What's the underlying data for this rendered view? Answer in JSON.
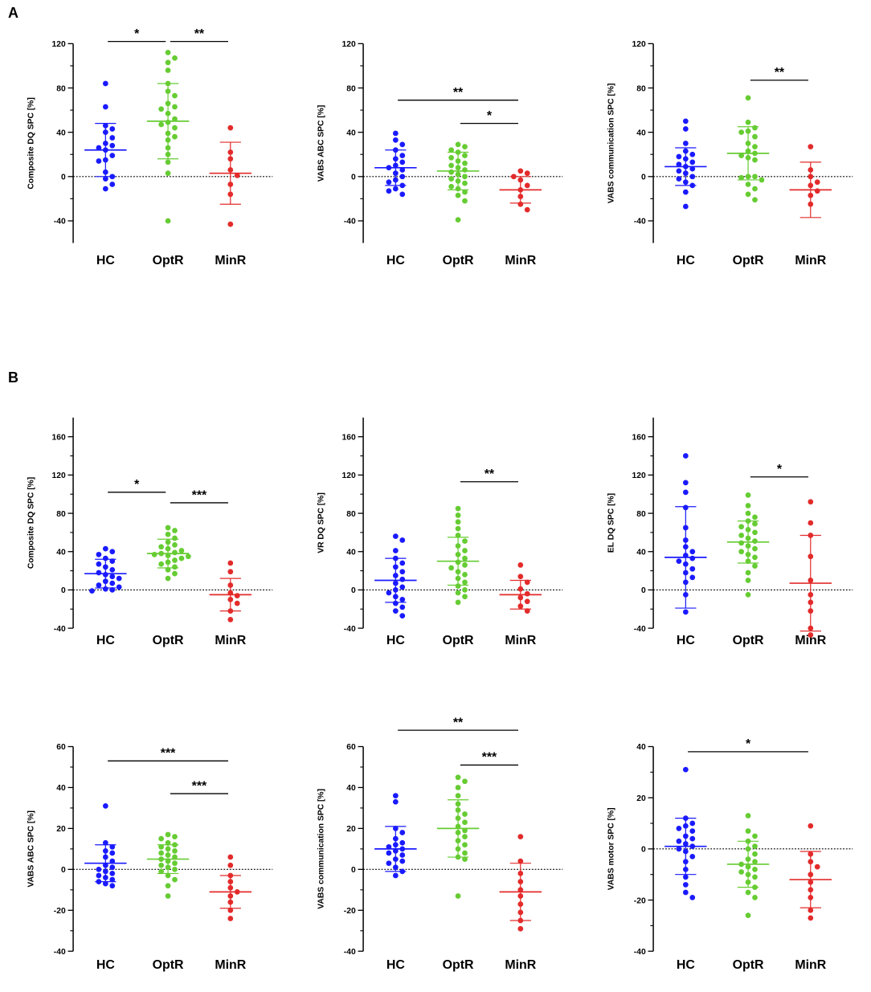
{
  "panels": [
    {
      "letter": "A"
    },
    {
      "letter": "B"
    }
  ],
  "colors": {
    "HC": "#1a1aff",
    "OptR": "#66cc33",
    "MinR": "#e32b2b"
  },
  "chart_data": [
    {
      "type": "scatter",
      "panel": "A",
      "ylabel": "Composite DQ SPC [%]",
      "ylim": [
        -60,
        120
      ],
      "yticks": [
        -40,
        0,
        40,
        80,
        120
      ],
      "categories": [
        "HC",
        "OptR",
        "MinR"
      ],
      "series": [
        {
          "name": "HC",
          "mean": 24,
          "sd": 24,
          "points": [
            84,
            63,
            46,
            43,
            40,
            35,
            30,
            28,
            26,
            24,
            19,
            15,
            14,
            4,
            0,
            -2,
            -7,
            -11
          ]
        },
        {
          "name": "OptR",
          "mean": 50,
          "sd": 34,
          "points": [
            112,
            107,
            103,
            96,
            84,
            77,
            73,
            66,
            63,
            61,
            57,
            52,
            49,
            47,
            44,
            39,
            36,
            33,
            26,
            20,
            13,
            3,
            -40
          ]
        },
        {
          "name": "MinR",
          "mean": 3,
          "sd": 28,
          "points": [
            44,
            22,
            16,
            6,
            1,
            -7,
            -16,
            -43
          ]
        }
      ],
      "significance": [
        {
          "from": "HC",
          "to": "OptR",
          "label": "*",
          "y": 122
        },
        {
          "from": "OptR",
          "to": "MinR",
          "label": "**",
          "y": 122
        }
      ]
    },
    {
      "type": "scatter",
      "panel": "A",
      "ylabel": "VABS ABC SPC [%]",
      "ylim": [
        -60,
        120
      ],
      "yticks": [
        -40,
        0,
        40,
        80,
        120
      ],
      "categories": [
        "HC",
        "OptR",
        "MinR"
      ],
      "series": [
        {
          "name": "HC",
          "mean": 8,
          "sd": 16,
          "points": [
            39,
            33,
            29,
            24,
            19,
            16,
            13,
            10,
            8,
            6,
            3,
            0,
            -3,
            -5,
            -8,
            -11,
            -13,
            -16
          ]
        },
        {
          "name": "OptR",
          "mean": 5,
          "sd": 17,
          "points": [
            29,
            27,
            24,
            22,
            19,
            17,
            14,
            12,
            10,
            8,
            6,
            4,
            2,
            0,
            -2,
            -4,
            -6,
            -9,
            -11,
            -14,
            -17,
            -22,
            -39
          ]
        },
        {
          "name": "MinR",
          "mean": -12,
          "sd": 12,
          "points": [
            5,
            3,
            0,
            -3,
            -8,
            -12,
            -18,
            -25,
            -30
          ]
        }
      ],
      "significance": [
        {
          "from": "HC",
          "to": "MinR",
          "label": "**",
          "y": 69
        },
        {
          "from": "OptR",
          "to": "MinR",
          "label": "*",
          "y": 48
        }
      ]
    },
    {
      "type": "scatter",
      "panel": "A",
      "ylabel": "VABS communication SPC [%]",
      "ylim": [
        -60,
        120
      ],
      "yticks": [
        -40,
        0,
        40,
        80,
        120
      ],
      "categories": [
        "HC",
        "OptR",
        "MinR"
      ],
      "series": [
        {
          "name": "HC",
          "mean": 9,
          "sd": 17,
          "points": [
            50,
            43,
            30,
            23,
            20,
            18,
            16,
            13,
            11,
            9,
            7,
            5,
            3,
            0,
            -2,
            -5,
            -8,
            -14,
            -27
          ]
        },
        {
          "name": "OptR",
          "mean": 21,
          "sd": 24,
          "points": [
            71,
            49,
            44,
            41,
            40,
            36,
            30,
            27,
            23,
            21,
            19,
            17,
            15,
            0,
            0,
            -1,
            -3,
            -7,
            -11,
            -16,
            -21
          ]
        },
        {
          "name": "MinR",
          "mean": -12,
          "sd": 25,
          "points": [
            27,
            6,
            0,
            -5,
            -8,
            -13,
            -17,
            -25
          ]
        }
      ],
      "significance": [
        {
          "from": "OptR",
          "to": "MinR",
          "label": "**",
          "y": 87
        }
      ]
    },
    {
      "type": "scatter",
      "panel": "B",
      "ylabel": "Composite DQ SPC [%]",
      "ylim": [
        -40,
        180
      ],
      "yticks": [
        -40,
        0,
        40,
        80,
        120,
        160
      ],
      "categories": [
        "HC",
        "OptR",
        "MinR"
      ],
      "series": [
        {
          "name": "HC",
          "mean": 17,
          "sd": 15,
          "points": [
            43,
            40,
            37,
            33,
            30,
            27,
            24,
            21,
            18,
            16,
            14,
            12,
            9,
            7,
            5,
            3,
            1,
            0,
            -1
          ]
        },
        {
          "name": "OptR",
          "mean": 38,
          "sd": 15,
          "points": [
            65,
            62,
            58,
            54,
            50,
            47,
            45,
            43,
            41,
            39,
            38,
            37,
            36,
            35,
            33,
            31,
            29,
            27,
            24,
            21,
            17,
            12
          ]
        },
        {
          "name": "MinR",
          "mean": -5,
          "sd": 17,
          "points": [
            28,
            19,
            5,
            -3,
            -6,
            -10,
            -14,
            -22,
            -31
          ]
        }
      ],
      "significance": [
        {
          "from": "HC",
          "to": "OptR",
          "label": "*",
          "y": 102
        },
        {
          "from": "OptR",
          "to": "MinR",
          "label": "***",
          "y": 91
        }
      ]
    },
    {
      "type": "scatter",
      "panel": "B",
      "ylabel": "VR DQ SPC [%]",
      "ylim": [
        -40,
        180
      ],
      "yticks": [
        -40,
        0,
        40,
        80,
        120,
        160
      ],
      "categories": [
        "HC",
        "OptR",
        "MinR"
      ],
      "series": [
        {
          "name": "HC",
          "mean": 10,
          "sd": 23,
          "points": [
            56,
            52,
            41,
            33,
            28,
            24,
            19,
            15,
            11,
            7,
            3,
            0,
            -3,
            -7,
            -10,
            -14,
            -18,
            -22,
            -27
          ]
        },
        {
          "name": "OptR",
          "mean": 30,
          "sd": 25,
          "points": [
            85,
            78,
            71,
            64,
            57,
            51,
            46,
            41,
            37,
            33,
            29,
            26,
            23,
            19,
            16,
            12,
            8,
            4,
            0,
            -3,
            -7,
            -13
          ]
        },
        {
          "name": "MinR",
          "mean": -5,
          "sd": 15,
          "points": [
            26,
            14,
            8,
            1,
            -4,
            -8,
            -12,
            -17,
            -22
          ]
        }
      ],
      "significance": [
        {
          "from": "OptR",
          "to": "MinR",
          "label": "**",
          "y": 113
        }
      ]
    },
    {
      "type": "scatter",
      "panel": "B",
      "ylabel": "EL DQ SPC [%]",
      "ylim": [
        -40,
        180
      ],
      "yticks": [
        -40,
        0,
        40,
        80,
        120,
        160
      ],
      "categories": [
        "HC",
        "OptR",
        "MinR"
      ],
      "series": [
        {
          "name": "HC",
          "mean": 34,
          "sd": 53,
          "points": [
            140,
            112,
            102,
            86,
            65,
            52,
            45,
            40,
            36,
            33,
            30,
            27,
            22,
            18,
            13,
            8,
            -5,
            -23
          ]
        },
        {
          "name": "OptR",
          "mean": 50,
          "sd": 22,
          "points": [
            99,
            88,
            80,
            76,
            72,
            69,
            66,
            63,
            60,
            57,
            54,
            51,
            49,
            46,
            43,
            40,
            37,
            34,
            30,
            25,
            18,
            10,
            -5
          ]
        },
        {
          "name": "MinR",
          "mean": 7,
          "sd": 50,
          "points": [
            92,
            70,
            57,
            35,
            10,
            -5,
            -13,
            -22,
            -40,
            -47
          ]
        }
      ],
      "significance": [
        {
          "from": "OptR",
          "to": "MinR",
          "label": "*",
          "y": 118
        }
      ]
    },
    {
      "type": "scatter",
      "panel": "B",
      "ylabel": "VABS ABC SPC [%]",
      "ylim": [
        -40,
        60
      ],
      "yticks": [
        -40,
        -20,
        0,
        20,
        40,
        60
      ],
      "categories": [
        "HC",
        "OptR",
        "MinR"
      ],
      "series": [
        {
          "name": "HC",
          "mean": 3,
          "sd": 9,
          "points": [
            31,
            13,
            11,
            9,
            8,
            6,
            4,
            2,
            1,
            0,
            -1,
            -2,
            -3,
            -4,
            -5,
            -6,
            -7,
            -8
          ]
        },
        {
          "name": "OptR",
          "mean": 5,
          "sd": 7,
          "points": [
            17,
            16,
            15,
            13,
            12,
            11,
            10,
            9,
            8,
            7,
            6,
            5,
            4,
            3,
            2,
            1,
            0,
            -1,
            -3,
            -5,
            -8,
            -13
          ]
        },
        {
          "name": "MinR",
          "mean": -11,
          "sd": 8,
          "points": [
            6,
            2,
            -3,
            -6,
            -9,
            -11,
            -13,
            -16,
            -20,
            -24
          ]
        }
      ],
      "significance": [
        {
          "from": "HC",
          "to": "MinR",
          "label": "***",
          "y": 53
        },
        {
          "from": "OptR",
          "to": "MinR",
          "label": "***",
          "y": 37
        }
      ]
    },
    {
      "type": "scatter",
      "panel": "B",
      "ylabel": "VABS communication SPC [%]",
      "ylim": [
        -40,
        60
      ],
      "yticks": [
        -40,
        -20,
        0,
        20,
        40,
        60
      ],
      "categories": [
        "HC",
        "OptR",
        "MinR"
      ],
      "series": [
        {
          "name": "HC",
          "mean": 10,
          "sd": 11,
          "points": [
            36,
            33,
            20,
            18,
            15,
            13,
            12,
            11,
            10,
            9,
            8,
            7,
            5,
            4,
            3,
            1,
            -1,
            -3
          ]
        },
        {
          "name": "OptR",
          "mean": 20,
          "sd": 14,
          "points": [
            45,
            43,
            40,
            36,
            32,
            29,
            27,
            25,
            23,
            21,
            19,
            18,
            16,
            14,
            12,
            10,
            8,
            6,
            5,
            -13
          ]
        },
        {
          "name": "MinR",
          "mean": -11,
          "sd": 14,
          "points": [
            16,
            4,
            -2,
            -6,
            -10,
            -13,
            -17,
            -21,
            -25,
            -29
          ]
        }
      ],
      "significance": [
        {
          "from": "HC",
          "to": "MinR",
          "label": "**",
          "y": 68
        },
        {
          "from": "OptR",
          "to": "MinR",
          "label": "***",
          "y": 51
        }
      ]
    },
    {
      "type": "scatter",
      "panel": "B",
      "ylabel": "VABS motor SPC [%]",
      "ylim": [
        -40,
        40
      ],
      "yticks": [
        -40,
        -20,
        0,
        20,
        40
      ],
      "categories": [
        "HC",
        "OptR",
        "MinR"
      ],
      "series": [
        {
          "name": "HC",
          "mean": 1,
          "sd": 11,
          "points": [
            31,
            12,
            10,
            9,
            8,
            7,
            5,
            4,
            3,
            2,
            1,
            0,
            -1,
            -3,
            -5,
            -8,
            -11,
            -14,
            -17,
            -19
          ]
        },
        {
          "name": "OptR",
          "mean": -6,
          "sd": 9,
          "points": [
            13,
            7,
            5,
            3,
            1,
            0,
            -2,
            -4,
            -5,
            -6,
            -7,
            -8,
            -9,
            -10,
            -11,
            -13,
            -15,
            -17,
            -19,
            -26
          ]
        },
        {
          "name": "MinR",
          "mean": -12,
          "sd": 11,
          "points": [
            9,
            -2,
            -5,
            -7,
            -10,
            -13,
            -16,
            -19,
            -24,
            -27
          ]
        }
      ],
      "significance": [
        {
          "from": "HC",
          "to": "MinR",
          "label": "*",
          "y": 38
        }
      ]
    }
  ]
}
